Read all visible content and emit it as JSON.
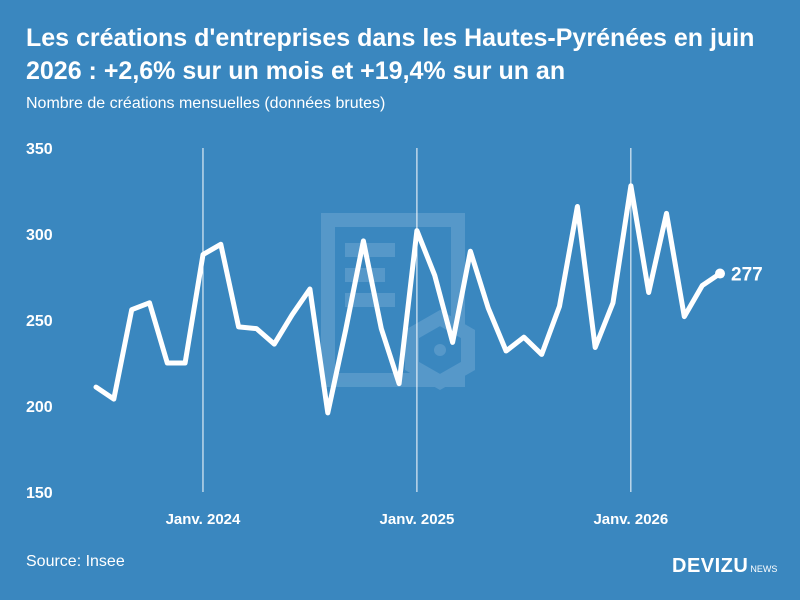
{
  "header": {
    "title": "Les créations d'entreprises dans les Hautes-Pyrénées en juin 2026 : +2,6% sur un mois et +19,4% sur un an",
    "subtitle": "Nombre de créations mensuelles (données brutes)"
  },
  "footer": {
    "source": "Source: Insee",
    "brand_main": "DEVIZU",
    "brand_sub": "NEWS"
  },
  "colors": {
    "background": "#3a87bf",
    "line": "#ffffff",
    "watermark": "#6fa8d3"
  },
  "chart_data": {
    "type": "line",
    "title": "Les créations d'entreprises dans les Hautes-Pyrénées en juin 2026 : +2,6% sur un mois et +19,4% sur un an",
    "subtitle": "Nombre de créations mensuelles (données brutes)",
    "xlabel": "",
    "ylabel": "",
    "ylim": [
      150,
      350
    ],
    "yticks": [
      150,
      200,
      250,
      300,
      350
    ],
    "x": [
      "2023-07",
      "2023-08",
      "2023-09",
      "2023-10",
      "2023-11",
      "2023-12",
      "2024-01",
      "2024-02",
      "2024-03",
      "2024-04",
      "2024-05",
      "2024-06",
      "2024-07",
      "2024-08",
      "2024-09",
      "2024-10",
      "2024-11",
      "2024-12",
      "2025-01",
      "2025-02",
      "2025-03",
      "2025-04",
      "2025-05",
      "2025-06",
      "2025-07",
      "2025-08",
      "2025-09",
      "2025-10",
      "2025-11",
      "2025-12",
      "2026-01",
      "2026-02",
      "2026-03",
      "2026-04",
      "2026-05",
      "2026-06"
    ],
    "series": [
      {
        "values": [
          211,
          204,
          256,
          260,
          225,
          225,
          288,
          294,
          246,
          245,
          236,
          253,
          268,
          196,
          244,
          296,
          245,
          213,
          302,
          276,
          237,
          290,
          257,
          232,
          240,
          230,
          258,
          316,
          234,
          260,
          328,
          266,
          312,
          252,
          270,
          277
        ]
      }
    ],
    "xtick_labels": [
      {
        "label": "Janv. 2024",
        "x": "2024-01"
      },
      {
        "label": "Janv. 2025",
        "x": "2025-01"
      },
      {
        "label": "Janv. 2026",
        "x": "2026-01"
      }
    ],
    "end_label": "277",
    "grid": "vertical lines at January of each year"
  }
}
